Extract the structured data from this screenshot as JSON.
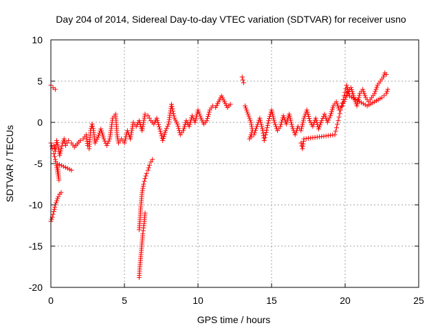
{
  "chart_data": {
    "type": "scatter",
    "title": "Day 204 of 2014, Sidereal Day-to-day VTEC variation (SDTVAR) for receiver usno",
    "xlabel": "GPS time / hours",
    "ylabel": "SDTVAR / TECUs",
    "xlim": [
      0,
      25
    ],
    "ylim": [
      -20,
      10
    ],
    "xticks": [
      0,
      5,
      10,
      15,
      20,
      25
    ],
    "yticks": [
      -20,
      -15,
      -10,
      -5,
      0,
      5,
      10
    ],
    "xtick_labels": [
      "0",
      "5",
      "10",
      "15",
      "20",
      "25"
    ],
    "ytick_labels": [
      "-20",
      "-15",
      "-10",
      "-5",
      "0",
      "5",
      "10"
    ],
    "grid": true,
    "marker": "+",
    "color": "#ff0000",
    "series": [
      {
        "name": "SDTVAR",
        "segments": [
          [
            [
              0.0,
              4.5
            ],
            [
              0.15,
              4.2
            ],
            [
              0.3,
              4.0
            ]
          ],
          [
            [
              0.0,
              -2.5
            ],
            [
              0.1,
              -3.2
            ],
            [
              0.2,
              -2.8
            ],
            [
              0.3,
              -3.5
            ],
            [
              0.4,
              -2.2
            ],
            [
              0.5,
              -3.0
            ],
            [
              0.6,
              -4.0
            ],
            [
              0.7,
              -3.2
            ],
            [
              0.8,
              -2.5
            ],
            [
              0.9,
              -2.0
            ],
            [
              1.0,
              -2.8
            ],
            [
              1.2,
              -2.2
            ],
            [
              1.4,
              -2.5
            ],
            [
              1.6,
              -3.0
            ],
            [
              1.8,
              -2.6
            ],
            [
              2.0,
              -2.2
            ],
            [
              2.2,
              -2.0
            ],
            [
              2.4,
              -1.5
            ],
            [
              2.5,
              -2.8
            ],
            [
              2.6,
              -3.2
            ],
            [
              2.7,
              -1.0
            ],
            [
              2.8,
              -0.2
            ],
            [
              2.9,
              -1.0
            ],
            [
              3.0,
              -2.5
            ],
            [
              3.2,
              -1.8
            ],
            [
              3.4,
              -0.8
            ],
            [
              3.6,
              -2.0
            ],
            [
              3.8,
              -2.8
            ],
            [
              4.0,
              -2.0
            ],
            [
              4.2,
              0.5
            ],
            [
              4.4,
              1.0
            ],
            [
              4.5,
              -1.5
            ],
            [
              4.6,
              -2.5
            ],
            [
              4.8,
              -2.0
            ],
            [
              5.0,
              -2.5
            ],
            [
              5.2,
              -1.0
            ],
            [
              5.4,
              -2.0
            ],
            [
              5.6,
              0.0
            ],
            [
              5.8,
              -0.5
            ],
            [
              6.0,
              0.2
            ],
            [
              6.2,
              -1.0
            ],
            [
              6.4,
              1.0
            ],
            [
              6.6,
              0.8
            ],
            [
              6.8,
              0.2
            ],
            [
              7.0,
              -0.2
            ],
            [
              7.2,
              0.5
            ],
            [
              7.4,
              -0.8
            ],
            [
              7.6,
              -2.2
            ],
            [
              7.8,
              -1.0
            ],
            [
              8.0,
              -0.2
            ],
            [
              8.2,
              2.2
            ],
            [
              8.4,
              0.5
            ],
            [
              8.6,
              -0.2
            ],
            [
              8.8,
              -1.5
            ],
            [
              9.0,
              -1.0
            ],
            [
              9.2,
              0.2
            ],
            [
              9.4,
              -0.5
            ],
            [
              9.6,
              0.8
            ],
            [
              9.8,
              0.0
            ],
            [
              10.0,
              1.5
            ],
            [
              10.2,
              0.5
            ],
            [
              10.4,
              -0.2
            ],
            [
              10.6,
              0.2
            ],
            [
              10.8,
              1.5
            ],
            [
              11.0,
              2.0
            ],
            [
              11.2,
              1.8
            ],
            [
              11.4,
              2.5
            ],
            [
              11.6,
              3.2
            ],
            [
              11.8,
              2.5
            ],
            [
              12.0,
              1.8
            ],
            [
              12.2,
              2.2
            ]
          ],
          [
            [
              0.0,
              -12.0
            ],
            [
              0.1,
              -11.5
            ],
            [
              0.2,
              -10.8
            ],
            [
              0.3,
              -10.0
            ],
            [
              0.4,
              -9.5
            ],
            [
              0.5,
              -9.0
            ],
            [
              0.6,
              -8.7
            ],
            [
              0.7,
              -8.5
            ]
          ],
          [
            [
              0.2,
              -3.8
            ],
            [
              0.3,
              -4.5
            ],
            [
              0.4,
              -5.5
            ],
            [
              0.5,
              -6.5
            ],
            [
              0.55,
              -7.0
            ],
            [
              0.45,
              -5.0
            ],
            [
              1.4,
              -5.8
            ]
          ],
          [
            [
              6.0,
              -18.8
            ],
            [
              6.05,
              -17.5
            ],
            [
              6.1,
              -16.5
            ],
            [
              6.15,
              -15.5
            ],
            [
              6.2,
              -14.5
            ],
            [
              6.25,
              -13.5
            ],
            [
              6.3,
              -12.8
            ],
            [
              6.35,
              -12.0
            ],
            [
              6.4,
              -11.0
            ]
          ],
          [
            [
              6.0,
              -13.0
            ],
            [
              6.05,
              -12.0
            ],
            [
              6.1,
              -10.5
            ],
            [
              6.15,
              -9.5
            ],
            [
              6.2,
              -8.5
            ],
            [
              6.3,
              -7.5
            ],
            [
              6.4,
              -6.8
            ],
            [
              6.5,
              -6.2
            ],
            [
              6.6,
              -5.8
            ],
            [
              6.7,
              -5.2
            ],
            [
              6.8,
              -4.8
            ],
            [
              6.9,
              -4.5
            ]
          ],
          [
            [
              13.0,
              5.5
            ],
            [
              13.1,
              4.8
            ]
          ],
          [
            [
              13.2,
              2.0
            ],
            [
              13.4,
              1.0
            ],
            [
              13.6,
              0.0
            ],
            [
              13.7,
              -1.0
            ],
            [
              13.5,
              -2.0
            ],
            [
              13.8,
              -1.5
            ],
            [
              14.0,
              -0.5
            ],
            [
              14.2,
              0.5
            ],
            [
              14.4,
              -1.0
            ],
            [
              14.5,
              -2.2
            ],
            [
              14.6,
              -1.5
            ],
            [
              14.8,
              0.2
            ],
            [
              15.0,
              1.5
            ],
            [
              15.2,
              0.0
            ],
            [
              15.4,
              -1.0
            ],
            [
              15.6,
              -0.5
            ],
            [
              15.8,
              0.8
            ],
            [
              16.0,
              -0.2
            ],
            [
              16.2,
              1.0
            ],
            [
              16.4,
              -0.5
            ],
            [
              16.6,
              -1.5
            ],
            [
              16.8,
              -0.5
            ],
            [
              17.0,
              -1.0
            ],
            [
              17.2,
              0.5
            ],
            [
              17.4,
              1.5
            ],
            [
              17.6,
              0.2
            ],
            [
              17.8,
              -0.5
            ],
            [
              18.0,
              0.5
            ],
            [
              18.2,
              -0.8
            ],
            [
              18.4,
              0.2
            ],
            [
              18.6,
              1.0
            ],
            [
              18.8,
              0.0
            ],
            [
              19.0,
              0.8
            ],
            [
              19.2,
              2.0
            ],
            [
              19.4,
              2.5
            ],
            [
              19.6,
              1.5
            ],
            [
              19.8,
              2.0
            ],
            [
              20.0,
              2.8
            ],
            [
              20.2,
              3.8
            ],
            [
              20.4,
              4.2
            ],
            [
              20.6,
              3.0
            ],
            [
              20.8,
              2.0
            ],
            [
              21.0,
              3.5
            ],
            [
              21.2,
              4.0
            ],
            [
              21.4,
              3.0
            ],
            [
              21.6,
              2.5
            ],
            [
              21.8,
              3.0
            ],
            [
              22.0,
              3.5
            ],
            [
              22.2,
              4.5
            ],
            [
              22.4,
              5.0
            ],
            [
              22.6,
              5.5
            ],
            [
              22.7,
              6.0
            ],
            [
              22.8,
              5.8
            ]
          ],
          [
            [
              17.0,
              -2.5
            ],
            [
              17.1,
              -3.2
            ],
            [
              17.2,
              -2.0
            ],
            [
              19.3,
              -1.5
            ],
            [
              20.1,
              4.5
            ],
            [
              20.3,
              3.2
            ],
            [
              21.5,
              2.0
            ],
            [
              22.0,
              2.5
            ],
            [
              22.5,
              3.0
            ],
            [
              22.8,
              3.5
            ],
            [
              22.9,
              4.0
            ]
          ]
        ]
      }
    ]
  }
}
